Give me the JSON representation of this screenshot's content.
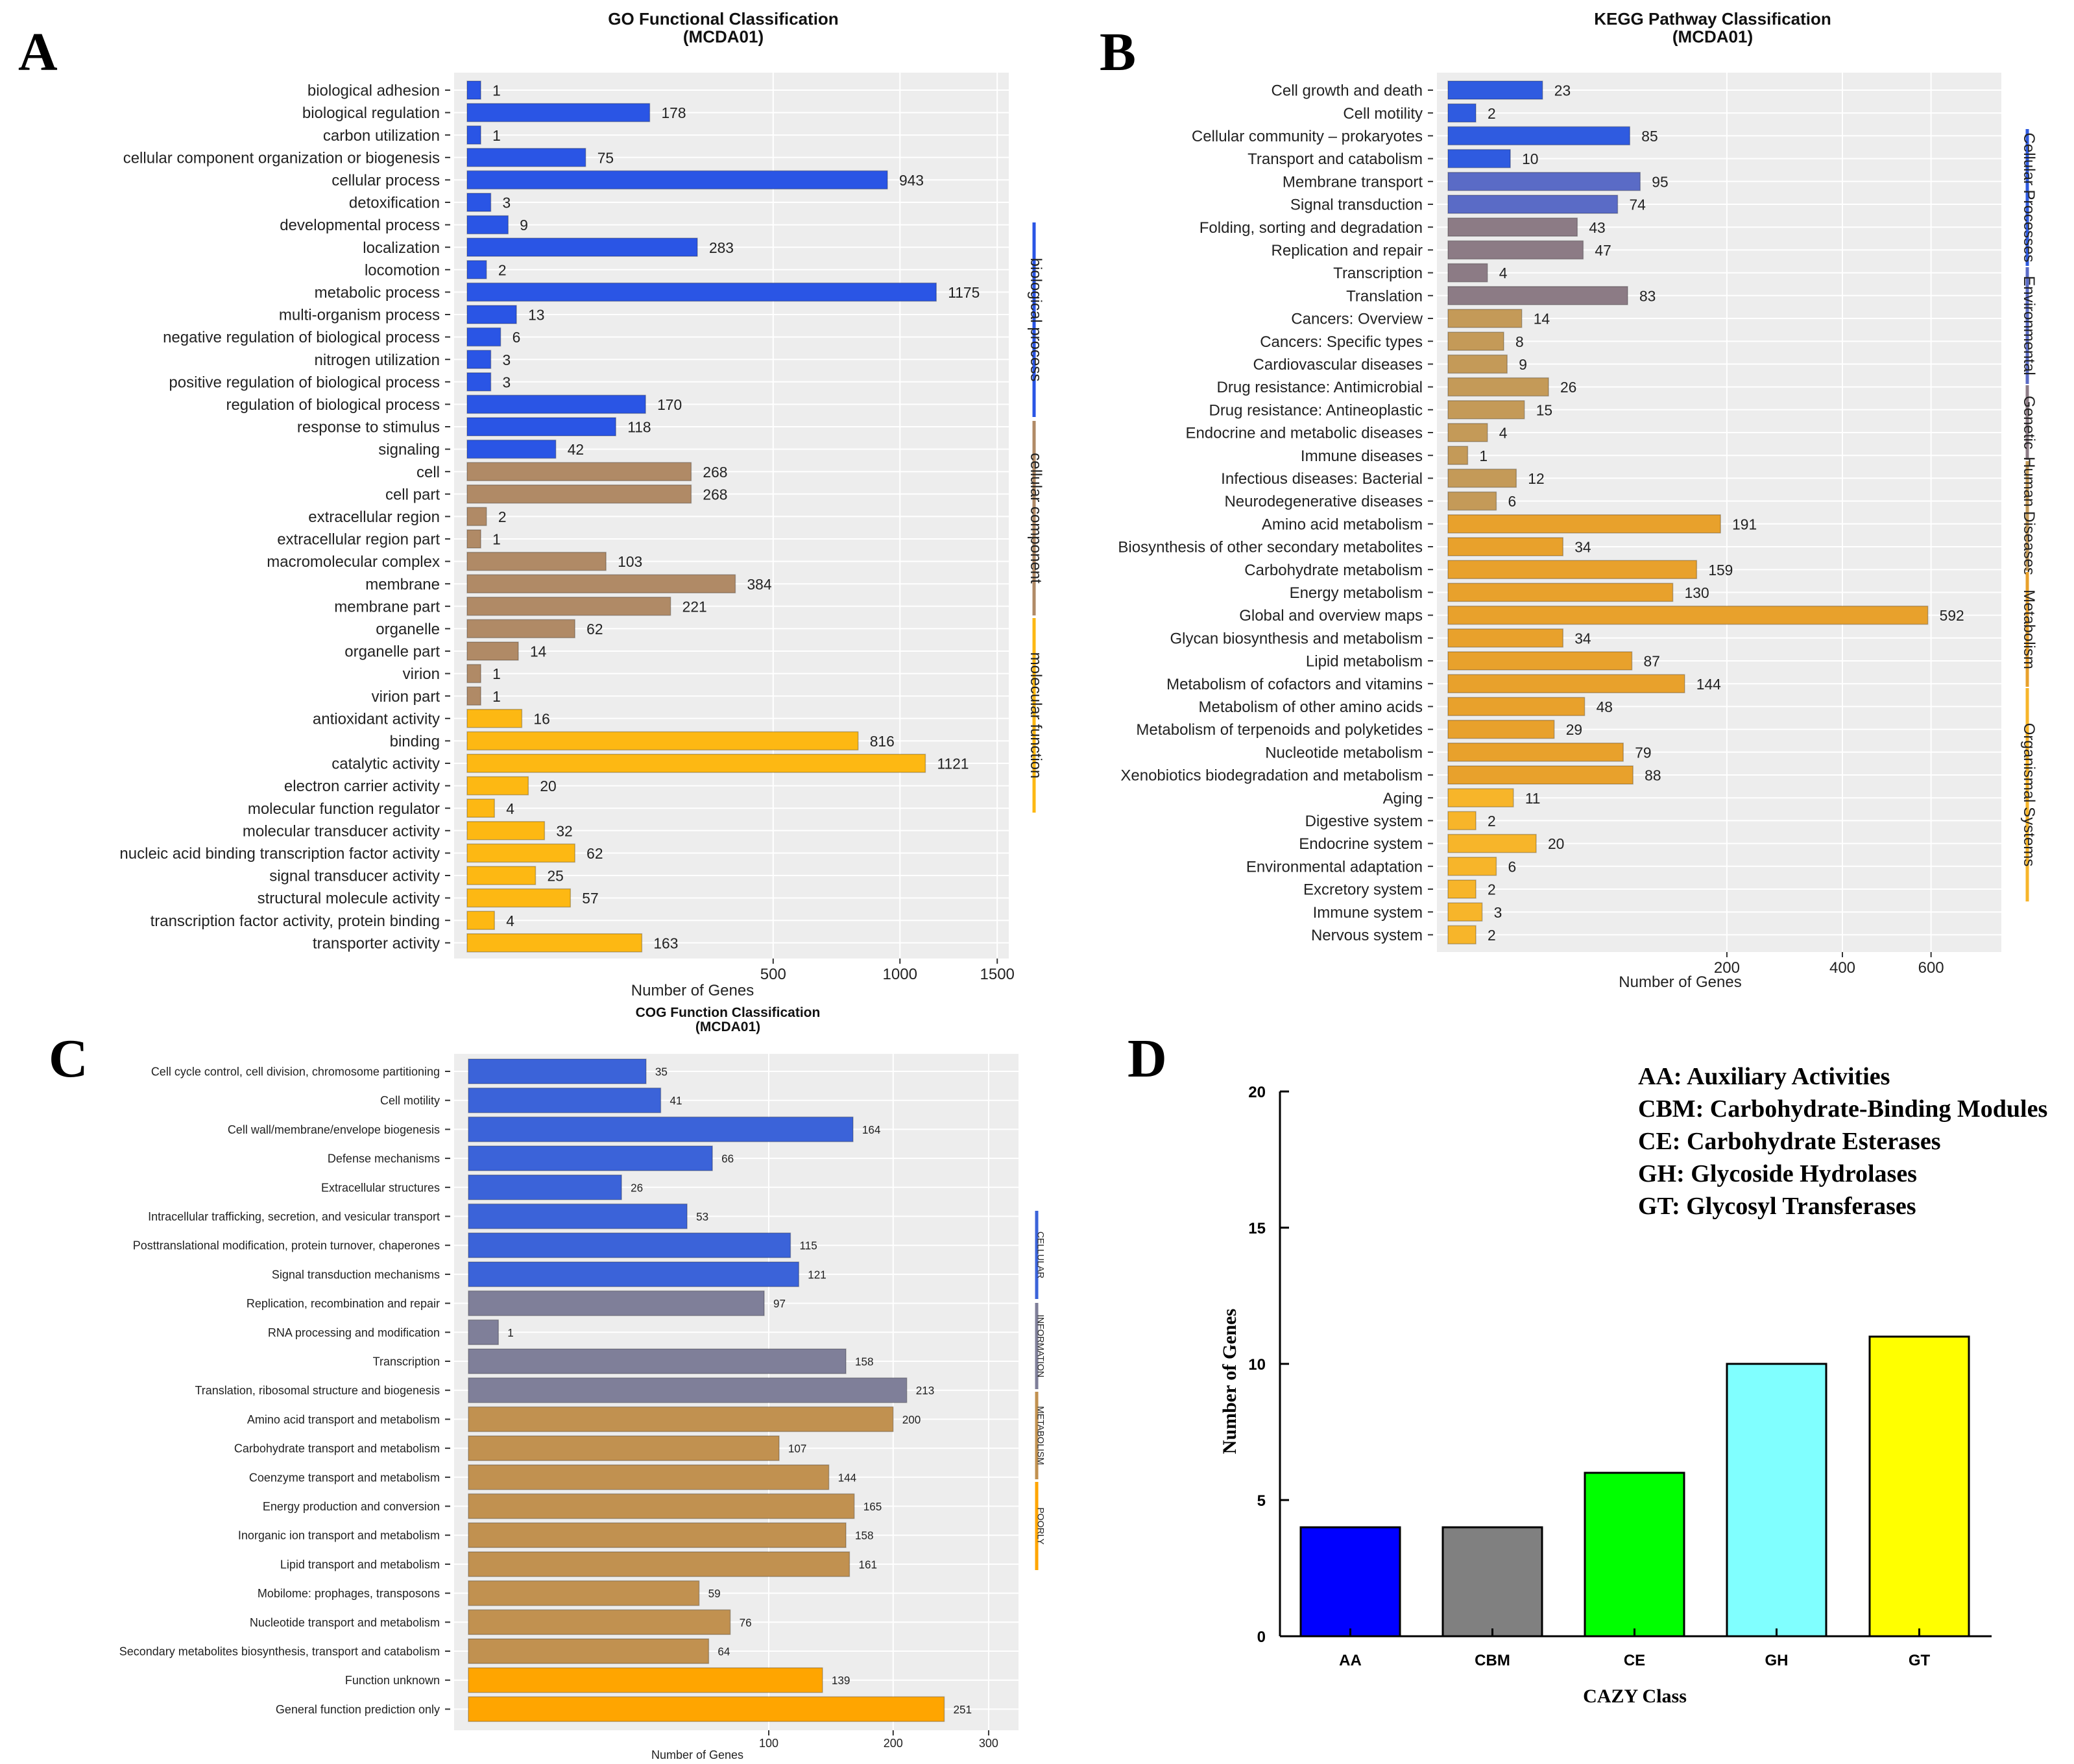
{
  "panels": {
    "A": "A",
    "B": "B",
    "C": "C",
    "D": "D"
  },
  "chart_data": [
    {
      "id": "A",
      "type": "bar",
      "orientation": "horizontal",
      "title": "GO Functional Classification",
      "subtitle": "(MCDA01)",
      "xlabel": "Number of Genes",
      "x_scale": "sqrt",
      "xticks": [
        500,
        1000,
        1500
      ],
      "xlim": [
        0,
        1500
      ],
      "categories": [
        "biological adhesion",
        "biological regulation",
        "carbon utilization",
        "cellular component organization or biogenesis",
        "cellular process",
        "detoxification",
        "developmental process",
        "localization",
        "locomotion",
        "metabolic process",
        "multi-organism process",
        "negative regulation of biological process",
        "nitrogen utilization",
        "positive regulation of biological process",
        "regulation of biological process",
        "response to stimulus",
        "signaling",
        "cell",
        "cell part",
        "extracellular region",
        "extracellular region part",
        "macromolecular complex",
        "membrane",
        "membrane part",
        "organelle",
        "organelle part",
        "virion",
        "virion part",
        "antioxidant activity",
        "binding",
        "catalytic activity",
        "electron carrier activity",
        "molecular function regulator",
        "molecular transducer activity",
        "nucleic acid binding transcription factor activity",
        "signal transducer activity",
        "structural molecule activity",
        "transcription factor activity, protein binding",
        "transporter activity"
      ],
      "values": [
        1,
        178,
        1,
        75,
        943,
        3,
        9,
        283,
        2,
        1175,
        13,
        6,
        3,
        3,
        170,
        118,
        42,
        268,
        268,
        2,
        1,
        103,
        384,
        221,
        62,
        14,
        1,
        1,
        16,
        816,
        1121,
        20,
        4,
        32,
        62,
        25,
        57,
        4,
        163
      ],
      "groups": [
        {
          "name": "biological process",
          "count": 17,
          "color": "#2a55e5"
        },
        {
          "name": "cellular component",
          "count": 11,
          "color": "#b08a66"
        },
        {
          "name": "molecular function",
          "count": 11,
          "color": "#fdb813"
        }
      ]
    },
    {
      "id": "B",
      "type": "bar",
      "orientation": "horizontal",
      "title": "KEGG Pathway Classification",
      "subtitle": "(MCDA01)",
      "xlabel": "Number of Genes",
      "x_scale": "sqrt",
      "xticks": [
        200,
        400,
        600
      ],
      "xlim": [
        0,
        700
      ],
      "categories": [
        "Cell growth and death",
        "Cell motility",
        "Cellular community – prokaryotes",
        "Transport and catabolism",
        "Membrane transport",
        "Signal transduction",
        "Folding, sorting and degradation",
        "Replication and repair",
        "Transcription",
        "Translation",
        "Cancers: Overview",
        "Cancers: Specific types",
        "Cardiovascular diseases",
        "Drug resistance: Antimicrobial",
        "Drug resistance: Antineoplastic",
        "Endocrine and metabolic diseases",
        "Immune diseases",
        "Infectious diseases: Bacterial",
        "Neurodegenerative diseases",
        "Amino acid metabolism",
        "Biosynthesis of other secondary metabolites",
        "Carbohydrate metabolism",
        "Energy metabolism",
        "Global and overview maps",
        "Glycan biosynthesis and metabolism",
        "Lipid metabolism",
        "Metabolism of cofactors and vitamins",
        "Metabolism of other amino acids",
        "Metabolism of terpenoids and polyketides",
        "Nucleotide metabolism",
        "Xenobiotics biodegradation and metabolism",
        "Aging",
        "Digestive system",
        "Endocrine system",
        "Environmental adaptation",
        "Excretory system",
        "Immune system",
        "Nervous system"
      ],
      "values": [
        23,
        2,
        85,
        10,
        95,
        74,
        43,
        47,
        4,
        83,
        14,
        8,
        9,
        26,
        15,
        4,
        1,
        12,
        6,
        191,
        34,
        159,
        130,
        592,
        34,
        87,
        144,
        48,
        29,
        79,
        88,
        11,
        2,
        20,
        6,
        2,
        3,
        2
      ],
      "groups": [
        {
          "name": "Cellular Processes",
          "count": 4,
          "color": "#2f5be0"
        },
        {
          "name": "Environmental",
          "count": 2,
          "color": "#5a6bc6"
        },
        {
          "name": "Genetic",
          "count": 4,
          "color": "#8c7b85"
        },
        {
          "name": "Human Diseases",
          "count": 9,
          "color": "#c49a58"
        },
        {
          "name": "Metabolism",
          "count": 12,
          "color": "#e8a12c"
        },
        {
          "name": "Organismal Systems",
          "count": 7,
          "color": "#f7b52a"
        }
      ]
    },
    {
      "id": "C",
      "type": "bar",
      "orientation": "horizontal",
      "title": "COG Function Classification",
      "subtitle": "(MCDA01)",
      "xlabel": "Number of Genes",
      "x_scale": "sqrt",
      "xticks": [
        100,
        200,
        300
      ],
      "xlim": [
        0,
        300
      ],
      "categories": [
        "Cell cycle control, cell division, chromosome partitioning",
        "Cell motility",
        "Cell wall/membrane/envelope biogenesis",
        "Defense mechanisms",
        "Extracellular structures",
        "Intracellular trafficking, secretion, and vesicular transport",
        "Posttranslational modification, protein turnover, chaperones",
        "Signal transduction mechanisms",
        "Replication, recombination and repair",
        "RNA processing and modification",
        "Transcription",
        "Translation, ribosomal structure and biogenesis",
        "Amino acid transport and metabolism",
        "Carbohydrate transport and metabolism",
        "Coenzyme transport and metabolism",
        "Energy production and conversion",
        "Inorganic ion transport and metabolism",
        "Lipid transport and metabolism",
        "Mobilome: prophages, transposons",
        "Nucleotide transport and metabolism",
        "Secondary metabolites biosynthesis, transport and catabolism",
        "Function unknown",
        "General function prediction only"
      ],
      "values": [
        35,
        41,
        164,
        66,
        26,
        53,
        115,
        121,
        97,
        1,
        158,
        213,
        200,
        107,
        144,
        165,
        158,
        161,
        59,
        76,
        64,
        139,
        251
      ],
      "groups": [
        {
          "name": "CELLULAR",
          "count": 8,
          "color": "#3b63d9"
        },
        {
          "name": "INFORMATION",
          "count": 4,
          "color": "#7f7f99"
        },
        {
          "name": "METABOLISM",
          "count": 9,
          "color": "#c19150"
        },
        {
          "name": "POORLY",
          "count": 2,
          "color": "#ffa500"
        }
      ]
    },
    {
      "id": "D",
      "type": "bar",
      "orientation": "vertical",
      "xlabel": "CAZY Class",
      "ylabel": "Number of Genes",
      "ylim": [
        0,
        20
      ],
      "yticks": [
        0,
        5,
        10,
        15,
        20
      ],
      "categories": [
        "AA",
        "CBM",
        "CE",
        "GH",
        "GT"
      ],
      "values": [
        4,
        4,
        6,
        10,
        11
      ],
      "colors": [
        "#0000ff",
        "#808080",
        "#00ff00",
        "#80ffff",
        "#ffff00"
      ],
      "legend": [
        "AA: Auxiliary Activities",
        "CBM: Carbohydrate-Binding Modules",
        "CE: Carbohydrate Esterases",
        "GH: Glycoside Hydrolases",
        "GT: Glycosyl Transferases"
      ]
    }
  ]
}
